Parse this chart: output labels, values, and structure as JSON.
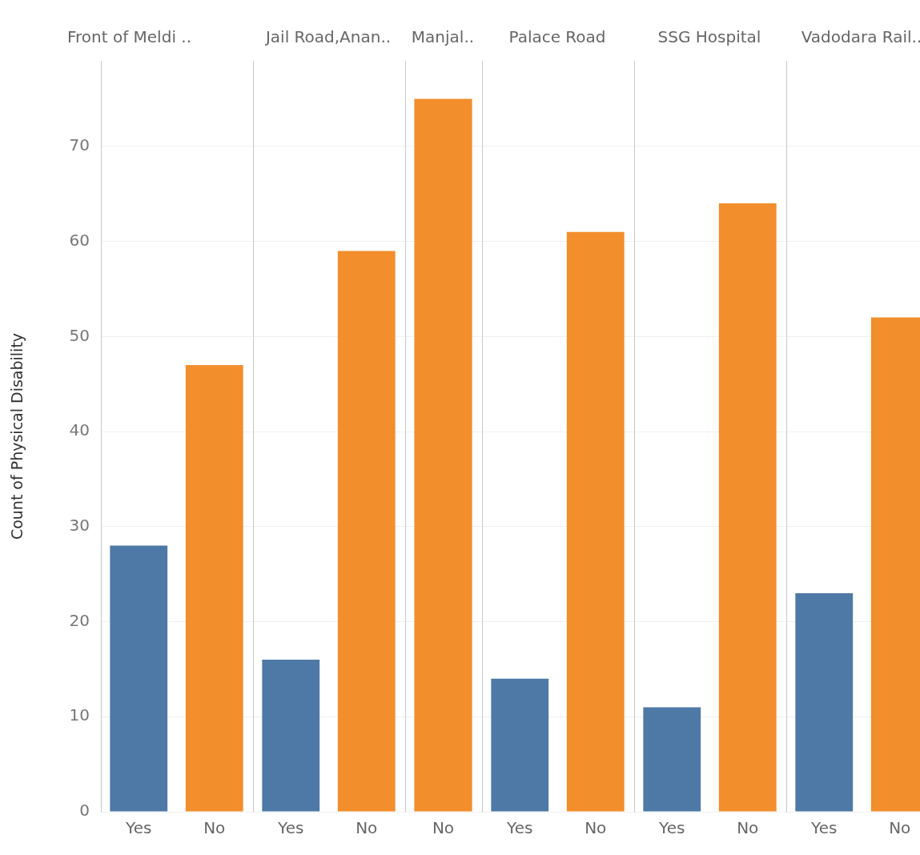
{
  "chart_data": [
    {
      "type": "bar",
      "title": "Front of Meldi ..",
      "ylabel": "Count of Physical Disability",
      "categories": [
        "Yes",
        "No"
      ],
      "values": [
        28,
        47
      ],
      "colors": [
        "#4e79a7",
        "#f28e2b"
      ],
      "ylim": [
        0,
        79
      ],
      "yticks": [
        0,
        10,
        20,
        30,
        40,
        50,
        60,
        70
      ],
      "grid": "y"
    },
    {
      "type": "bar",
      "title": "Jail Road,Anan..",
      "categories": [
        "Yes",
        "No"
      ],
      "values": [
        16,
        59
      ],
      "colors": [
        "#4e79a7",
        "#f28e2b"
      ],
      "ylim": [
        0,
        79
      ],
      "yticks": [
        0,
        10,
        20,
        30,
        40,
        50,
        60,
        70
      ],
      "grid": "y",
      "tick_labels": "x"
    },
    {
      "type": "bar",
      "title": "Manjal..",
      "categories": [
        "No"
      ],
      "values": [
        75
      ],
      "colors": [
        "#f28e2b"
      ],
      "ylim": [
        0,
        79
      ],
      "yticks": [
        0,
        10,
        20,
        30,
        40,
        50,
        60,
        70
      ],
      "grid": "y",
      "tick_labels": "x"
    },
    {
      "type": "bar",
      "title": "Palace Road",
      "categories": [
        "Yes",
        "No"
      ],
      "values": [
        14,
        61
      ],
      "colors": [
        "#4e79a7",
        "#f28e2b"
      ],
      "ylim": [
        0,
        79
      ],
      "yticks": [
        0,
        10,
        20,
        30,
        40,
        50,
        60,
        70
      ],
      "grid": "y",
      "tick_labels": "x"
    },
    {
      "type": "bar",
      "title": "SSG Hospital",
      "categories": [
        "Yes",
        "No"
      ],
      "values": [
        11,
        64
      ],
      "colors": [
        "#4e79a7",
        "#f28e2b"
      ],
      "ylim": [
        0,
        79
      ],
      "yticks": [
        0,
        10,
        20,
        30,
        40,
        50,
        60,
        70
      ],
      "grid": "y",
      "tick_labels": "x"
    },
    {
      "type": "bar",
      "title": "Vadodara Rail..",
      "categories": [
        "Yes",
        "No"
      ],
      "values": [
        23,
        52
      ],
      "colors": [
        "#4e79a7",
        "#f28e2b"
      ],
      "ylim": [
        0,
        79
      ],
      "yticks": [
        0,
        10,
        20,
        30,
        40,
        50,
        60,
        70
      ],
      "grid": "y",
      "tick_labels": "x"
    }
  ]
}
